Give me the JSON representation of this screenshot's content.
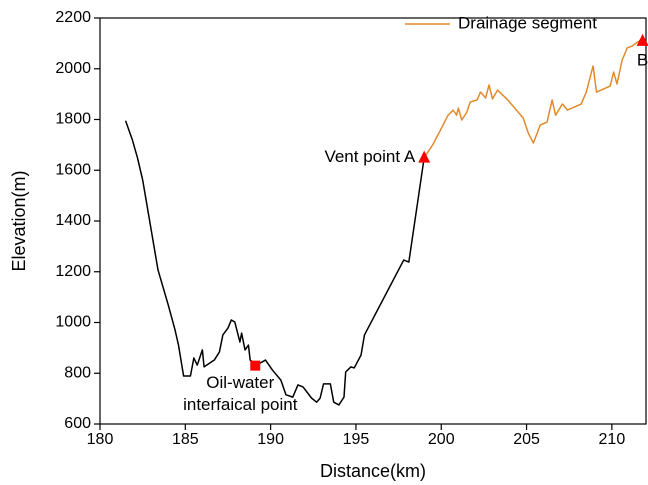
{
  "chart_data": {
    "type": "line",
    "xlabel": "Distance(km)",
    "ylabel": "Elevation(m)",
    "xlim": [
      180,
      212
    ],
    "ylim": [
      600,
      2200
    ],
    "xticks": [
      180,
      185,
      190,
      195,
      200,
      205,
      210
    ],
    "yticks": [
      600,
      800,
      1000,
      1200,
      1400,
      1600,
      1800,
      2000,
      2200
    ],
    "legend": "upper right",
    "series": [
      {
        "color": "#000000",
        "x": [
          181.5,
          181.9,
          182.2,
          182.5,
          183.0,
          183.4,
          184.0,
          184.4,
          184.6,
          184.9,
          185.3,
          185.5,
          185.7,
          186.0,
          186.1,
          186.7,
          187.0,
          187.2,
          187.5,
          187.7,
          187.9,
          188.2,
          188.3,
          188.5,
          188.7,
          188.8,
          189.2,
          189.7,
          190.1,
          190.6,
          190.9,
          191.3,
          191.6,
          191.9,
          192.4,
          192.7,
          192.9,
          193.1,
          193.5,
          193.7,
          194.0,
          194.3,
          194.4,
          194.7,
          194.9,
          195.3,
          195.5,
          197.8,
          198.1,
          199.0
        ],
        "values": [
          1795,
          1719,
          1648,
          1562,
          1365,
          1207,
          1069,
          970,
          911,
          789,
          789,
          860,
          832,
          892,
          825,
          852,
          884,
          951,
          978,
          1010,
          1002,
          923,
          958,
          892,
          911,
          852,
          833,
          852,
          813,
          773,
          715,
          706,
          754,
          746,
          702,
          686,
          702,
          758,
          758,
          686,
          675,
          706,
          805,
          825,
          821,
          872,
          951,
          1246,
          1238,
          1650
        ]
      },
      {
        "name": "Drainage segment",
        "color": "#e08a2c",
        "x": [
          199.0,
          199.5,
          199.96,
          200.4,
          200.7,
          200.9,
          201.0,
          201.2,
          201.5,
          201.7,
          202.1,
          202.3,
          202.6,
          202.8,
          203.0,
          203.3,
          203.9,
          204.8,
          205.1,
          205.4,
          205.8,
          206.2,
          206.5,
          206.7,
          207.1,
          207.4,
          208.2,
          208.5,
          208.9,
          209.1,
          209.9,
          210.1,
          210.3,
          210.6,
          210.9,
          211.2,
          211.5,
          211.7
        ],
        "values": [
          1650,
          1700,
          1759,
          1817,
          1837,
          1817,
          1845,
          1798,
          1829,
          1869,
          1877,
          1908,
          1885,
          1936,
          1881,
          1916,
          1877,
          1806,
          1747,
          1707,
          1778,
          1790,
          1877,
          1817,
          1861,
          1837,
          1861,
          1908,
          2011,
          1908,
          1932,
          1987,
          1940,
          2034,
          2082,
          2090,
          2105,
          2113
        ]
      }
    ],
    "markers": [
      {
        "label": [
          "Oil-water",
          "interfaical point"
        ],
        "x": 189.1,
        "y": 830,
        "shape": "square",
        "color": "#ff0000"
      },
      {
        "label": [
          "Vent point A"
        ],
        "x": 199.0,
        "y": 1650,
        "shape": "triangle",
        "color": "#ff0000"
      },
      {
        "label": [
          "B"
        ],
        "x": 211.8,
        "y": 2110,
        "shape": "triangle",
        "color": "#ff0000"
      }
    ]
  }
}
